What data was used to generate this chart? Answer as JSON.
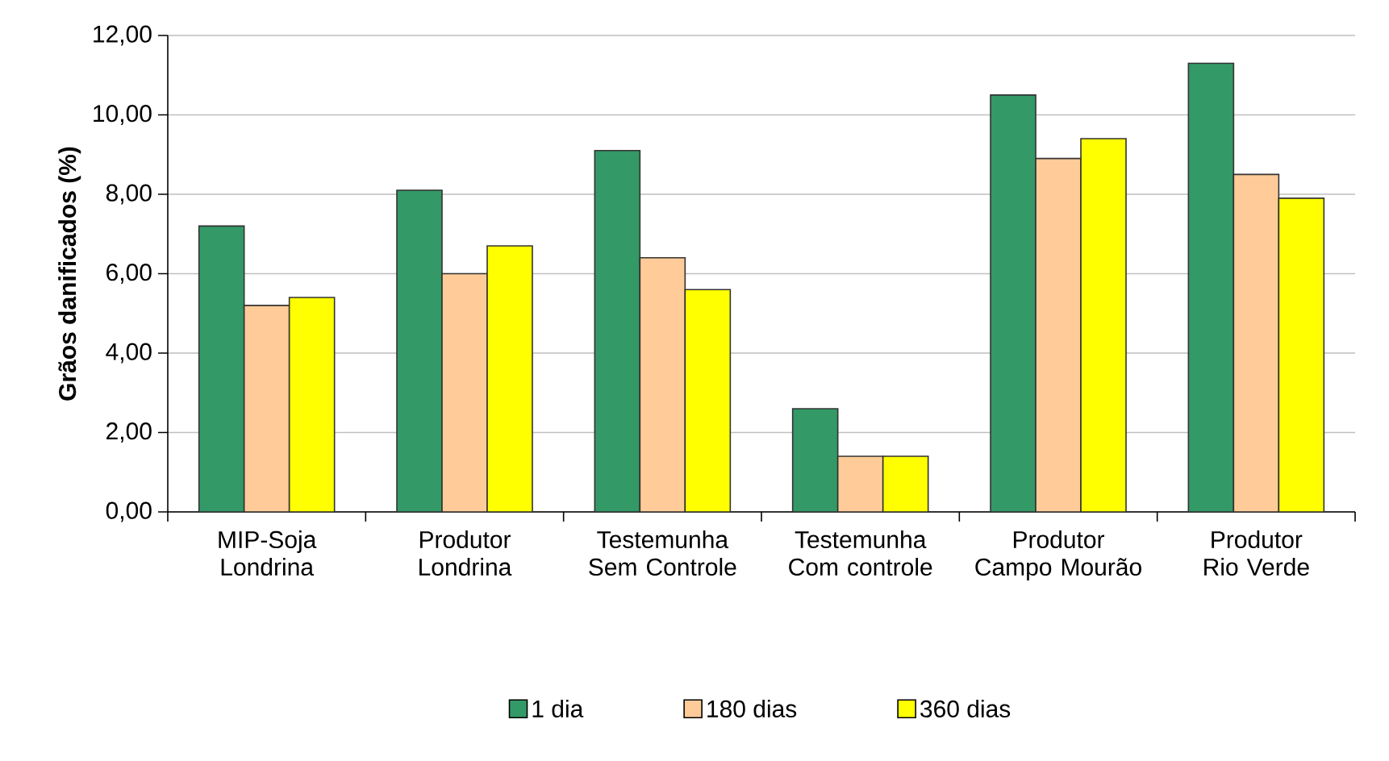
{
  "chart_data": {
    "type": "bar",
    "ylabel": "Grãos danificados (%)",
    "categories": [
      "MIP-Soja Londrina",
      "Produtor Londrina",
      "Testemunha Sem Controle",
      "Testemunha Com controle",
      "Produtor Campo Mourão",
      "Produtor Rio Verde"
    ],
    "series": [
      {
        "name": "1 dia",
        "color": "#339966",
        "values": [
          7.2,
          8.1,
          9.1,
          2.6,
          10.5,
          11.3
        ]
      },
      {
        "name": "180 dias",
        "color": "#ffcc99",
        "values": [
          5.2,
          6.0,
          6.4,
          1.4,
          8.9,
          8.5
        ]
      },
      {
        "name": "360 dias",
        "color": "#ffff00",
        "values": [
          5.4,
          6.7,
          5.6,
          1.4,
          9.4,
          7.9
        ]
      }
    ],
    "ylim": [
      0,
      12
    ],
    "yticks": [
      {
        "value": 0,
        "label": "0,00"
      },
      {
        "value": 2,
        "label": "2,00"
      },
      {
        "value": 4,
        "label": "4,00"
      },
      {
        "value": 6,
        "label": "6,00"
      },
      {
        "value": 8,
        "label": "8,00"
      },
      {
        "value": 10,
        "label": "10,00"
      },
      {
        "value": 12,
        "label": "12,00"
      }
    ],
    "grid": "y",
    "legend": "bottom"
  }
}
